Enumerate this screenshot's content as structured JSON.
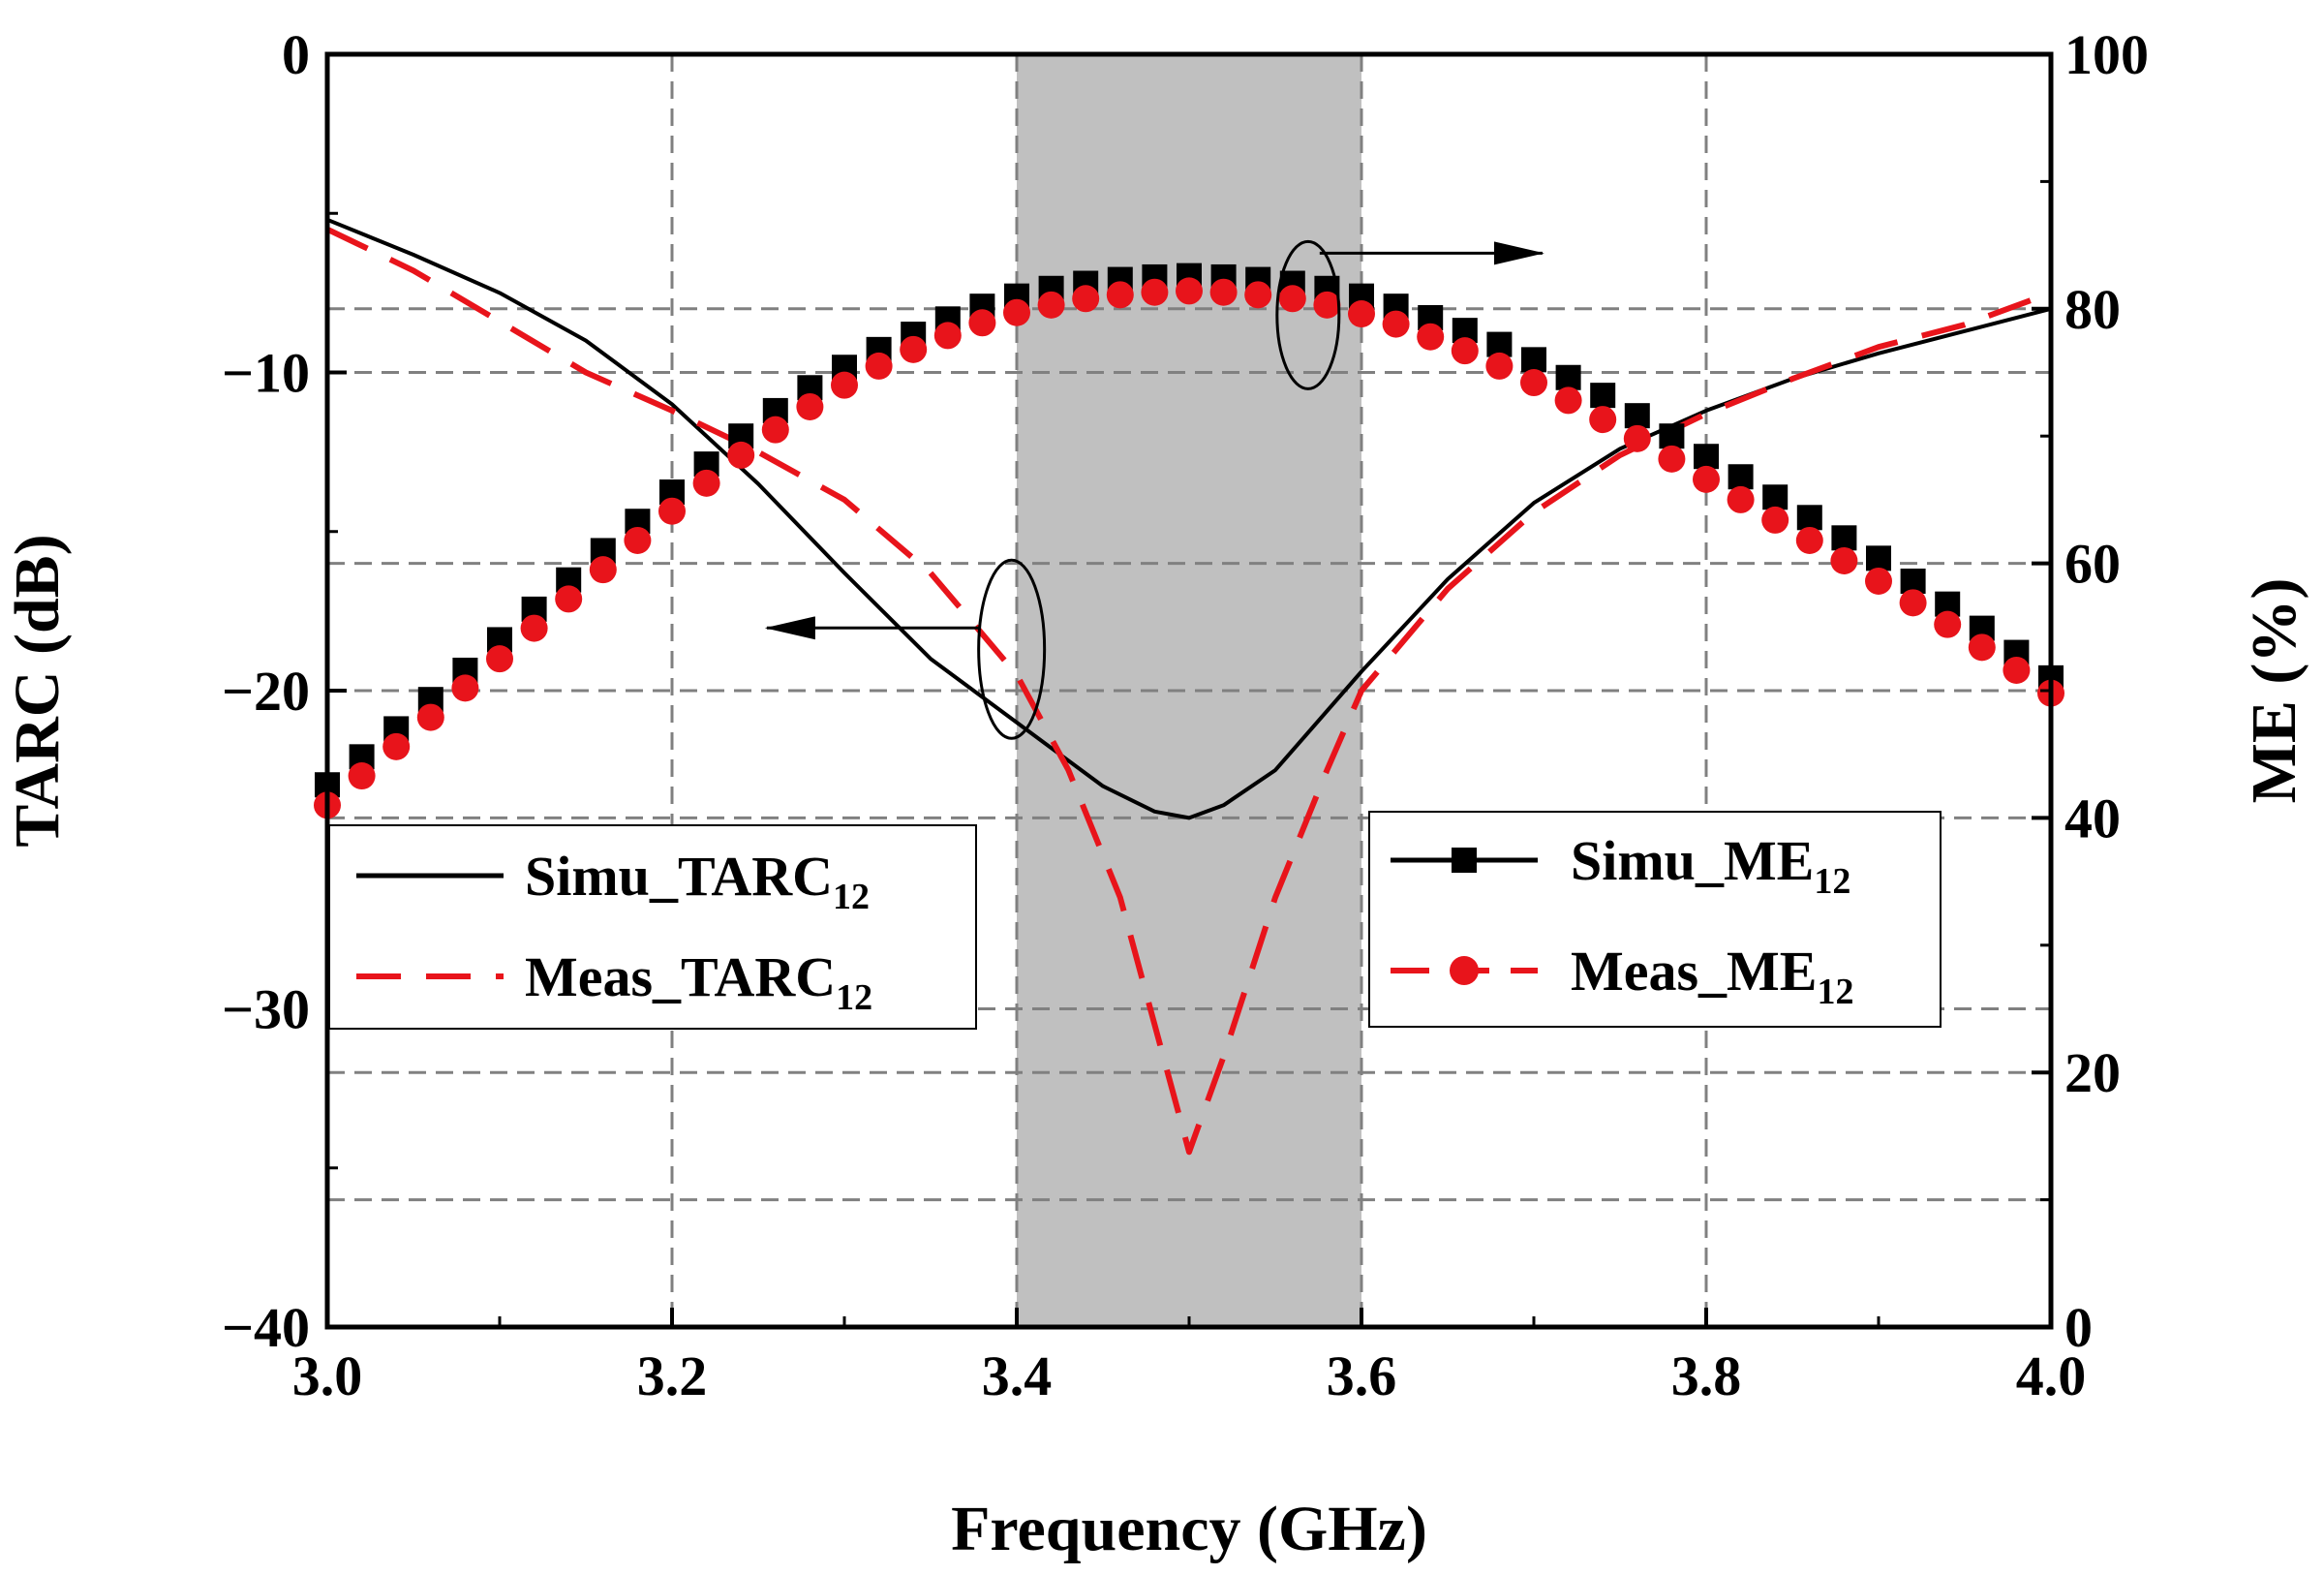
{
  "chart_data": {
    "type": "line",
    "title": "",
    "xlabel": "Frequency (GHz)",
    "ylabel_left": "TARC (dB)",
    "ylabel_right": "ME (%)",
    "xlim": [
      3.0,
      4.0
    ],
    "ylim_left": [
      -40,
      0
    ],
    "ylim_right": [
      0,
      100
    ],
    "x_ticks": [
      "3.0",
      "3.2",
      "3.4",
      "3.6",
      "3.8",
      "4.0"
    ],
    "y_left_ticks": [
      "0",
      "−10",
      "−20",
      "−30",
      "−40"
    ],
    "y_right_ticks": [
      "100",
      "80",
      "60",
      "40",
      "20",
      "0"
    ],
    "grid": true,
    "shaded_band": [
      3.4,
      3.6
    ],
    "colors": {
      "simu": "#000000",
      "meas": "#e8141b",
      "band": "#c0c0c0",
      "grid": "#808080"
    },
    "legend_left": [
      {
        "label": "Simu_TARC",
        "sub": "12",
        "style": "solid"
      },
      {
        "label": "Meas_TARC",
        "sub": "12",
        "style": "dashed"
      }
    ],
    "legend_right": [
      {
        "label": "Simu_ME",
        "sub": "12",
        "style": "solid-square"
      },
      {
        "label": "Meas_ME",
        "sub": "12",
        "style": "dashed-circle"
      }
    ],
    "series": [
      {
        "name": "Simu_TARC12",
        "axis": "left",
        "x": [
          3.0,
          3.05,
          3.1,
          3.15,
          3.2,
          3.25,
          3.3,
          3.35,
          3.4,
          3.45,
          3.48,
          3.5,
          3.52,
          3.55,
          3.6,
          3.65,
          3.7,
          3.75,
          3.8,
          3.85,
          3.9,
          3.95,
          4.0
        ],
        "values": [
          -5.2,
          -6.3,
          -7.5,
          -9.0,
          -11.0,
          -13.5,
          -16.3,
          -19.0,
          -21.0,
          -23.0,
          -23.8,
          -24.0,
          -23.6,
          -22.5,
          -19.4,
          -16.5,
          -14.1,
          -12.4,
          -11.2,
          -10.2,
          -9.4,
          -8.7,
          -8.0
        ]
      },
      {
        "name": "Meas_TARC12",
        "axis": "left",
        "x": [
          3.0,
          3.05,
          3.1,
          3.15,
          3.2,
          3.25,
          3.3,
          3.35,
          3.4,
          3.43,
          3.46,
          3.48,
          3.5,
          3.52,
          3.55,
          3.58,
          3.6,
          3.65,
          3.7,
          3.75,
          3.8,
          3.85,
          3.9,
          3.95,
          4.0
        ],
        "values": [
          -5.5,
          -6.8,
          -8.4,
          -10.0,
          -11.2,
          -12.5,
          -14.0,
          -16.3,
          -19.5,
          -22.5,
          -26.5,
          -30.5,
          -34.5,
          -31.5,
          -26.5,
          -22.5,
          -20.0,
          -16.8,
          -14.4,
          -12.6,
          -11.3,
          -10.2,
          -9.2,
          -8.5,
          -7.5
        ]
      },
      {
        "name": "Simu_ME12",
        "axis": "right",
        "marker": "square",
        "x": [
          3.0,
          3.02,
          3.04,
          3.06,
          3.08,
          3.1,
          3.12,
          3.14,
          3.16,
          3.18,
          3.2,
          3.22,
          3.24,
          3.26,
          3.28,
          3.3,
          3.32,
          3.34,
          3.36,
          3.38,
          3.4,
          3.42,
          3.44,
          3.46,
          3.48,
          3.5,
          3.52,
          3.54,
          3.56,
          3.58,
          3.6,
          3.62,
          3.64,
          3.66,
          3.68,
          3.7,
          3.72,
          3.74,
          3.76,
          3.78,
          3.8,
          3.82,
          3.84,
          3.86,
          3.88,
          3.9,
          3.92,
          3.94,
          3.96,
          3.98,
          4.0
        ],
        "values": [
          42.6,
          44.8,
          47.0,
          49.3,
          51.6,
          54.0,
          56.4,
          58.7,
          61.0,
          63.3,
          65.6,
          67.8,
          70.0,
          72.0,
          73.8,
          75.4,
          76.8,
          78.0,
          79.2,
          80.2,
          81.0,
          81.6,
          82.0,
          82.3,
          82.5,
          82.6,
          82.5,
          82.3,
          82.0,
          81.6,
          81.0,
          80.2,
          79.3,
          78.3,
          77.2,
          76.0,
          74.6,
          73.2,
          71.6,
          70.0,
          68.4,
          66.8,
          65.2,
          63.6,
          62.0,
          60.4,
          58.6,
          56.8,
          54.9,
          53.0,
          51.0
        ]
      },
      {
        "name": "Meas_ME12",
        "axis": "right",
        "marker": "circle",
        "x": [
          3.0,
          3.02,
          3.04,
          3.06,
          3.08,
          3.1,
          3.12,
          3.14,
          3.16,
          3.18,
          3.2,
          3.22,
          3.24,
          3.26,
          3.28,
          3.3,
          3.32,
          3.34,
          3.36,
          3.38,
          3.4,
          3.42,
          3.44,
          3.46,
          3.48,
          3.5,
          3.52,
          3.54,
          3.56,
          3.58,
          3.6,
          3.62,
          3.64,
          3.66,
          3.68,
          3.7,
          3.72,
          3.74,
          3.76,
          3.78,
          3.8,
          3.82,
          3.84,
          3.86,
          3.88,
          3.9,
          3.92,
          3.94,
          3.96,
          3.98,
          4.0
        ],
        "values": [
          41.0,
          43.3,
          45.6,
          47.9,
          50.2,
          52.5,
          54.9,
          57.2,
          59.5,
          61.8,
          64.1,
          66.3,
          68.5,
          70.5,
          72.3,
          74.0,
          75.5,
          76.8,
          77.9,
          78.9,
          79.7,
          80.3,
          80.8,
          81.1,
          81.3,
          81.4,
          81.3,
          81.1,
          80.8,
          80.3,
          79.6,
          78.8,
          77.8,
          76.7,
          75.5,
          74.2,
          72.8,
          71.3,
          69.8,
          68.2,
          66.6,
          65.0,
          63.4,
          61.8,
          60.2,
          58.6,
          56.9,
          55.2,
          53.4,
          51.6,
          49.8
        ]
      }
    ]
  }
}
